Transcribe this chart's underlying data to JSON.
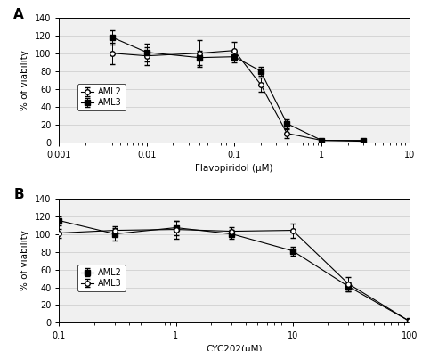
{
  "panel_A": {
    "title": "A",
    "xlabel": "Flavopiridol (μM)",
    "ylabel": "% of viability",
    "xlim": [
      0.001,
      10
    ],
    "ylim": [
      0,
      140
    ],
    "yticks": [
      0,
      20,
      40,
      60,
      80,
      100,
      120,
      140
    ],
    "xticks": [
      0.001,
      0.01,
      0.1,
      1,
      10
    ],
    "xticklabels": [
      "0.001",
      "0.01",
      "0.1",
      "1",
      "10"
    ],
    "AML2": {
      "x": [
        0.004,
        0.01,
        0.04,
        0.1,
        0.2,
        0.4,
        1,
        3
      ],
      "y": [
        100,
        97,
        100,
        103,
        65,
        10,
        2,
        1
      ],
      "yerr": [
        12,
        10,
        15,
        10,
        8,
        5,
        1,
        1
      ],
      "marker": "o",
      "fillstyle": "none",
      "color": "black",
      "label": "AML2"
    },
    "AML3": {
      "x": [
        0.004,
        0.01,
        0.04,
        0.1,
        0.2,
        0.4,
        1,
        3
      ],
      "y": [
        118,
        101,
        95,
        96,
        80,
        21,
        2,
        2
      ],
      "yerr": [
        8,
        10,
        8,
        6,
        5,
        5,
        1,
        1
      ],
      "marker": "s",
      "fillstyle": "full",
      "color": "black",
      "label": "AML3"
    }
  },
  "panel_B": {
    "title": "B",
    "xlabel": "CYC202(μM)",
    "ylabel": "% of viability",
    "xlim": [
      0.1,
      100
    ],
    "ylim": [
      0,
      140
    ],
    "yticks": [
      0,
      20,
      40,
      60,
      80,
      100,
      120,
      140
    ],
    "xticks": [
      0.1,
      1,
      10,
      100
    ],
    "xticklabels": [
      "0.1",
      "1",
      "10",
      "100"
    ],
    "AML2": {
      "x": [
        0.1,
        0.3,
        1,
        3,
        10,
        30,
        100
      ],
      "y": [
        115,
        100,
        107,
        100,
        81,
        41,
        2
      ],
      "yerr": [
        5,
        7,
        8,
        5,
        5,
        5,
        1
      ],
      "marker": "s",
      "fillstyle": "full",
      "color": "black",
      "label": "AML2"
    },
    "AML3": {
      "x": [
        0.1,
        0.3,
        1,
        3,
        10,
        30,
        100
      ],
      "y": [
        101,
        104,
        105,
        103,
        104,
        44,
        2
      ],
      "yerr": [
        5,
        5,
        10,
        5,
        8,
        8,
        1
      ],
      "marker": "o",
      "fillstyle": "none",
      "color": "black",
      "label": "AML3"
    }
  },
  "background_color": "#ffffff",
  "panel_bg": "#f0f0f0",
  "grid_color": "#d0d0d0",
  "line_color": "#000000"
}
